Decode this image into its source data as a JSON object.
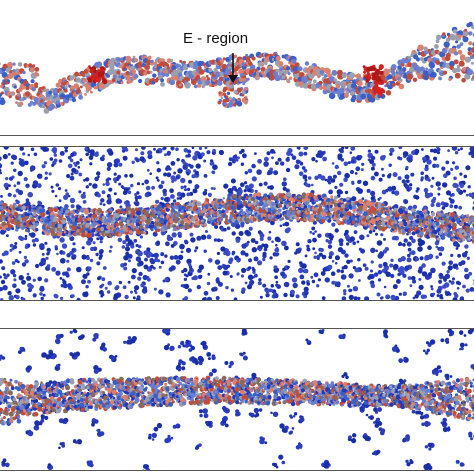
{
  "figure": {
    "annotation": {
      "label": "E - region"
    },
    "panels": [
      {
        "id": "top",
        "description_tag": "membrane-only",
        "molecule_colors": [
          "#3b5fc4",
          "#6b7fd0",
          "#c24c3c",
          "#d98070",
          "#9aa0b0"
        ],
        "highlight_color": "#d42020"
      },
      {
        "id": "middle",
        "description_tag": "membrane-with-dense-solvent",
        "molecule_colors": [
          "#1a2ea8",
          "#2438b8",
          "#3c4cc6"
        ]
      },
      {
        "id": "bottom",
        "description_tag": "membrane-with-sparse-solvent",
        "molecule_colors": [
          "#1a2ea8",
          "#2a3cbd"
        ]
      }
    ],
    "colors": {
      "frame": "#555555",
      "membrane_core": "#8a6a5a",
      "solvent": "#1f33b0"
    }
  }
}
